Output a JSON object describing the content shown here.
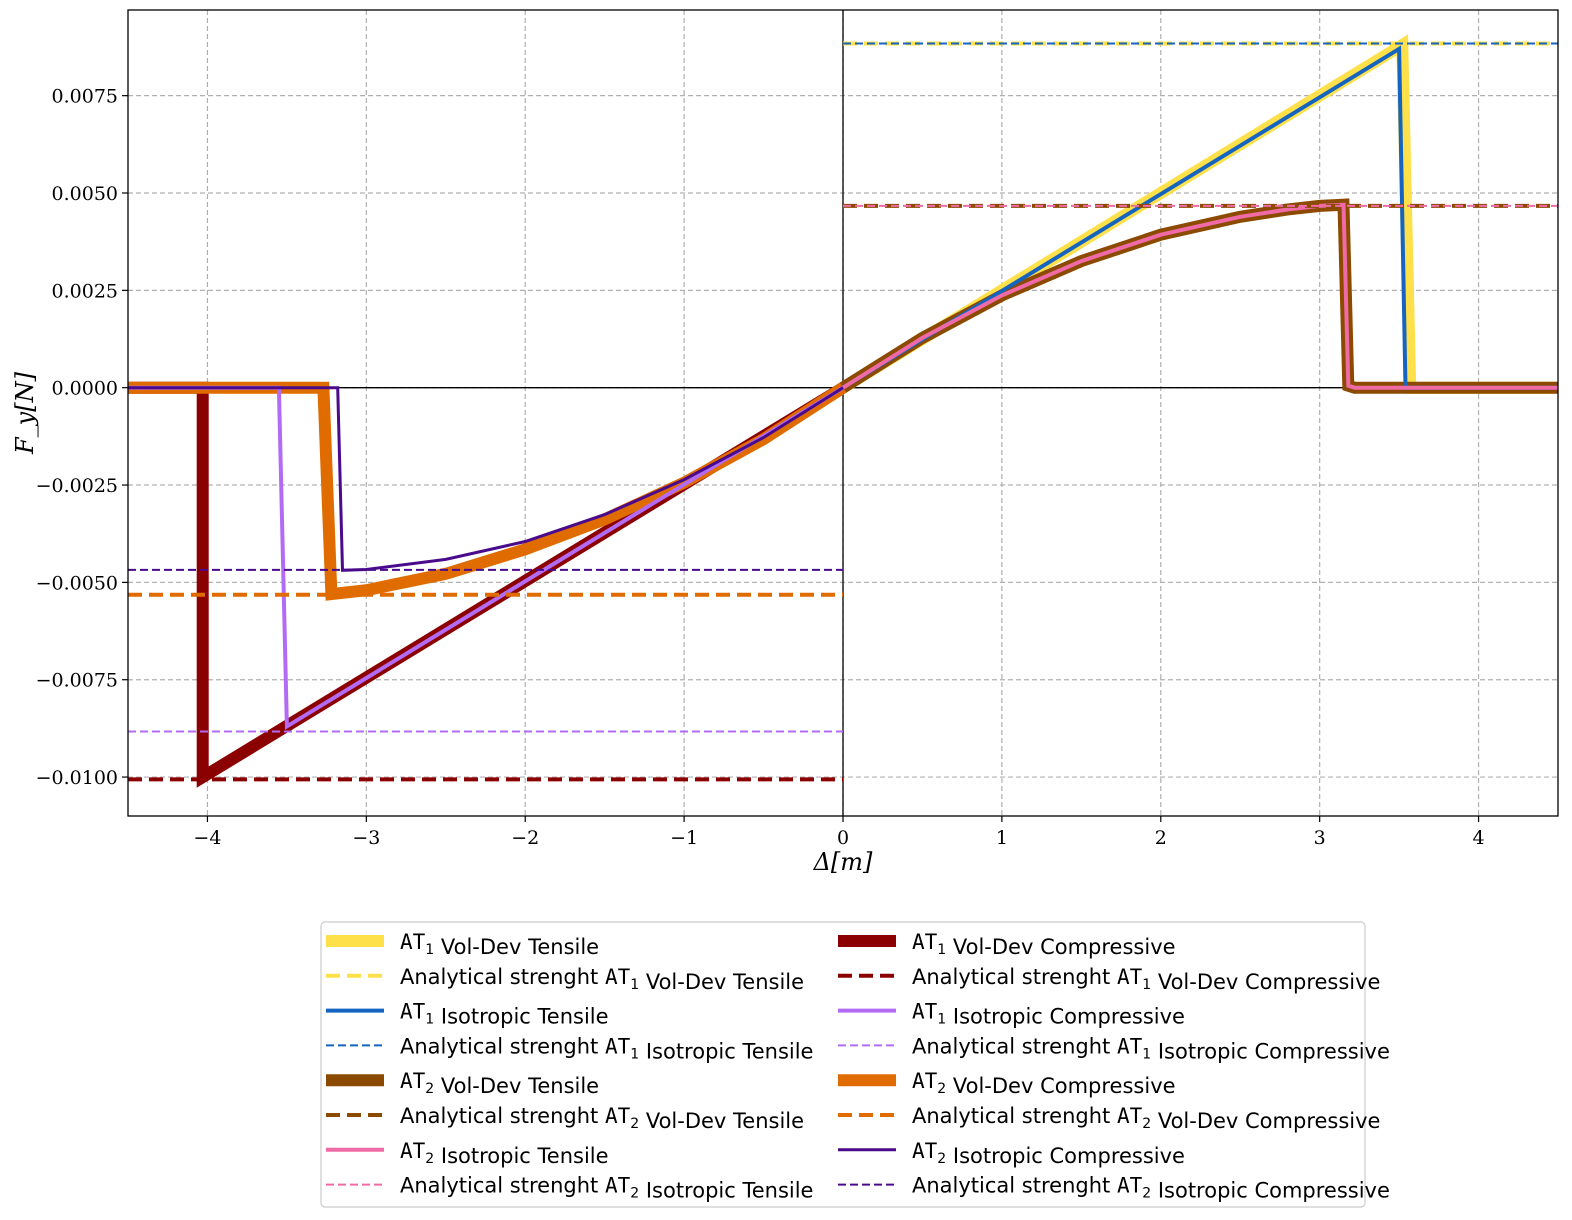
{
  "chart_data": {
    "type": "line",
    "xlabel": "Δ[m]",
    "ylabel": "F_y[N]",
    "xlim": [
      -4.5,
      4.5
    ],
    "ylim": [
      -0.011,
      0.0097
    ],
    "grid": true,
    "legend_position": "below, two columns",
    "x_ticks": [
      -4,
      -3,
      -2,
      -1,
      0,
      1,
      2,
      3,
      4
    ],
    "x_tick_labels": [
      "−4",
      "−3",
      "−2",
      "−1",
      "0",
      "1",
      "2",
      "3",
      "4"
    ],
    "y_ticks": [
      0.0075,
      0.005,
      0.0025,
      0.0,
      -0.0025,
      -0.005,
      -0.0075,
      -0.01
    ],
    "y_tick_labels": [
      "0.0075",
      "0.0050",
      "0.0025",
      "0.0000",
      "−0.0025",
      "−0.0050",
      "−0.0075",
      "−0.0100"
    ],
    "series": [
      {
        "name": "AT1 Vol-Dev Tensile",
        "color": "#fde04a",
        "width": 12,
        "dash": "solid",
        "x": [
          0,
          3.52,
          3.57,
          4.5
        ],
        "y": [
          0,
          0.0088,
          0,
          0
        ]
      },
      {
        "name": "Analytical strenght AT1 Vol-Dev Tensile",
        "color": "#fde04a",
        "width": 4,
        "dash": "dashed",
        "x": [
          0,
          4.5
        ],
        "y": [
          0.00884,
          0.00884
        ]
      },
      {
        "name": "AT1 Isotropic Tensile",
        "color": "#1565c0",
        "width": 4,
        "dash": "solid",
        "x": [
          0,
          3.5,
          3.54,
          4.5
        ],
        "y": [
          0,
          0.0087,
          0,
          0
        ]
      },
      {
        "name": "Analytical strenght AT1 Isotropic Tensile",
        "color": "#1565c0",
        "width": 2,
        "dash": "dashed",
        "x": [
          0,
          4.5
        ],
        "y": [
          0.00884,
          0.00884
        ]
      },
      {
        "name": "AT2 Vol-Dev Tensile",
        "color": "#8b4a00",
        "width": 12,
        "dash": "solid",
        "x": [
          0,
          0.5,
          1,
          1.5,
          2,
          2.5,
          2.8,
          3.0,
          3.1,
          3.15,
          3.18,
          3.22,
          4.5
        ],
        "y": [
          0,
          0.00128,
          0.00237,
          0.00325,
          0.00393,
          0.00439,
          0.00458,
          0.00467,
          0.00469,
          0.0047,
          5e-05,
          0,
          0
        ]
      },
      {
        "name": "Analytical strenght AT2 Vol-Dev Tensile",
        "color": "#8b4a00",
        "width": 4,
        "dash": "dashed",
        "x": [
          0,
          4.5
        ],
        "y": [
          0.00467,
          0.00467
        ]
      },
      {
        "name": "AT2 Isotropic Tensile",
        "color": "#f06aa8",
        "width": 4,
        "dash": "solid",
        "x": [
          0,
          0.5,
          1,
          1.5,
          2,
          2.5,
          2.8,
          3.0,
          3.1,
          3.15,
          3.18,
          3.22,
          4.5
        ],
        "y": [
          0,
          0.00128,
          0.00237,
          0.00325,
          0.00393,
          0.00439,
          0.00458,
          0.00467,
          0.00469,
          0.0047,
          5e-05,
          0,
          0
        ]
      },
      {
        "name": "Analytical strenght AT2 Isotropic Tensile",
        "color": "#f06aa8",
        "width": 2,
        "dash": "dashed",
        "x": [
          0,
          4.5
        ],
        "y": [
          0.00467,
          0.00467
        ]
      },
      {
        "name": "AT1 Vol-Dev Compressive",
        "color": "#8b0000",
        "width": 12,
        "dash": "solid",
        "x": [
          -4.5,
          -4.03,
          -4.03,
          0
        ],
        "y": [
          0,
          0,
          -0.01,
          0
        ]
      },
      {
        "name": "Analytical strenght AT1 Vol-Dev Compressive",
        "color": "#8b0000",
        "width": 4,
        "dash": "dashed",
        "x": [
          -4.5,
          0
        ],
        "y": [
          -0.01006,
          -0.01006
        ]
      },
      {
        "name": "AT1 Isotropic Compressive",
        "color": "#b36bf5",
        "width": 4,
        "dash": "solid",
        "x": [
          -4.5,
          -3.55,
          -3.5,
          0
        ],
        "y": [
          0,
          0,
          -0.0087,
          0
        ]
      },
      {
        "name": "Analytical strenght AT1 Isotropic Compressive",
        "color": "#b36bf5",
        "width": 2,
        "dash": "dashed",
        "x": [
          -4.5,
          0
        ],
        "y": [
          -0.00883,
          -0.00883
        ]
      },
      {
        "name": "AT2 Vol-Dev Compressive",
        "color": "#e06c00",
        "width": 12,
        "dash": "solid",
        "x": [
          -4.5,
          -3.27,
          -3.22,
          -3.0,
          -2.5,
          -2.0,
          -1.5,
          -1.0,
          -0.5,
          0
        ],
        "y": [
          0,
          0,
          -0.0053,
          -0.0052,
          -0.00478,
          -0.00415,
          -0.00338,
          -0.00244,
          -0.00132,
          0
        ]
      },
      {
        "name": "Analytical strenght AT2 Vol-Dev Compressive",
        "color": "#e06c00",
        "width": 4,
        "dash": "dashed",
        "x": [
          -4.5,
          0
        ],
        "y": [
          -0.00532,
          -0.00532
        ]
      },
      {
        "name": "AT2 Isotropic Compressive",
        "color": "#4a0a8c",
        "width": 3,
        "dash": "solid",
        "x": [
          -4.5,
          -3.18,
          -3.15,
          -3.0,
          -2.5,
          -2.0,
          -1.5,
          -1.0,
          -0.5,
          0
        ],
        "y": [
          0,
          0,
          -0.00469,
          -0.00467,
          -0.00441,
          -0.00395,
          -0.00326,
          -0.00236,
          -0.00128,
          0
        ]
      },
      {
        "name": "Analytical strenght AT2 Isotropic Compressive",
        "color": "#4a0a8c",
        "width": 2,
        "dash": "dashed",
        "x": [
          -4.5,
          0
        ],
        "y": [
          -0.00468,
          -0.00468
        ]
      }
    ],
    "legend_order": [
      0,
      1,
      2,
      3,
      4,
      5,
      6,
      7,
      8,
      9,
      10,
      11,
      12,
      13,
      14,
      15
    ]
  }
}
